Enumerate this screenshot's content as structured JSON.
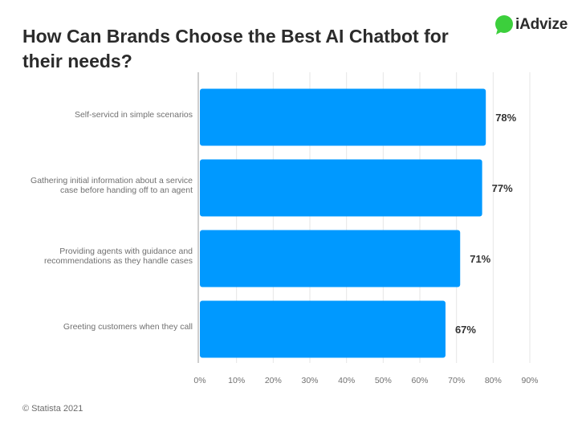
{
  "header": {
    "title": "How Can Brands Choose the Best AI Chatbot for their needs?"
  },
  "logo": {
    "text": "iAdvize",
    "icon": "chat-bubble-icon",
    "color": "#3ccf3c"
  },
  "footer": {
    "source": "© Statista 2021"
  },
  "chart_data": {
    "type": "bar",
    "orientation": "horizontal",
    "categories": [
      [
        "Self-servicd in simple scenarios"
      ],
      [
        "Gathering initial information about a service",
        "case before handing off to an agent"
      ],
      [
        "Providing agents with guidance and",
        "recommendations as they handle cases"
      ],
      [
        "Greeting customers when they call"
      ]
    ],
    "values": [
      78,
      77,
      71,
      67
    ],
    "value_labels": [
      "78%",
      "77%",
      "71%",
      "67%"
    ],
    "xlim": [
      0,
      90
    ],
    "xticks": [
      0,
      10,
      20,
      30,
      40,
      50,
      60,
      70,
      80,
      90
    ],
    "xtick_labels": [
      "0%",
      "10%",
      "20%",
      "30%",
      "40%",
      "50%",
      "60%",
      "70%",
      "80%",
      "90%"
    ],
    "bar_color": "#0099ff",
    "grid": true,
    "xlabel": "",
    "ylabel": ""
  }
}
